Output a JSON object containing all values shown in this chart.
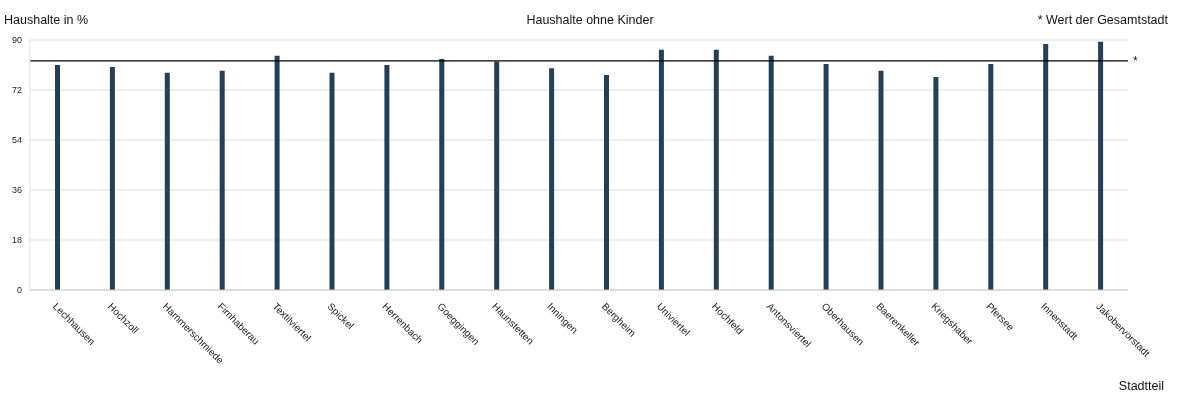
{
  "chart_data": {
    "type": "bar",
    "title": "Haushalte ohne Kinder",
    "ylabel": "Haushalte in %",
    "xlabel": "Stadtteil",
    "annotations": [
      "* Wert der Gesamtstadt"
    ],
    "categories": [
      "Lechhausen",
      "Hochzoll",
      "Hammerschmiede",
      "Firnhaberau",
      "Textilviertel",
      "Spickel",
      "Herrenbach",
      "Goeggingen",
      "Haunstetten",
      "Inningen",
      "Bergheim",
      "Univiertel",
      "Hochfeld",
      "Antonsviertel",
      "Oberhausen",
      "Baerenkeller",
      "Kriegshaber",
      "Pfersee",
      "Innenstadt",
      "Jakobervorstadt"
    ],
    "values": [
      81.0,
      80.3,
      78.2,
      78.9,
      84.3,
      78.2,
      81.0,
      83.2,
      82.3,
      79.8,
      77.4,
      86.5,
      86.5,
      84.3,
      81.4,
      78.9,
      76.7,
      81.4,
      88.6,
      89.4
    ],
    "color": "#243f56",
    "ylim": [
      0,
      90
    ],
    "yticks": [
      0,
      18,
      36,
      54,
      72,
      90
    ],
    "grid": "y",
    "ref_lines": [
      {
        "axis": "y",
        "value": 82.5,
        "label": "*",
        "color": "#000000"
      }
    ]
  }
}
